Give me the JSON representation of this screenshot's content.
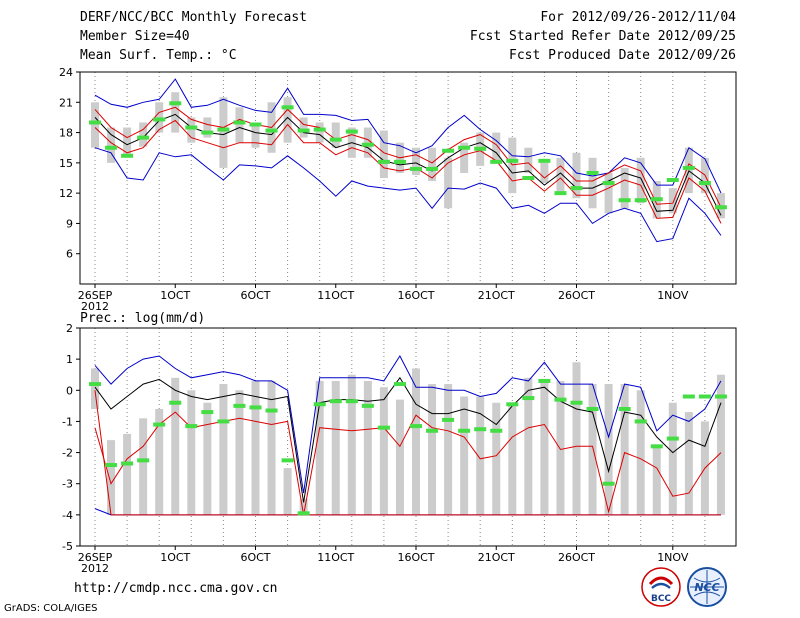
{
  "header": {
    "title": "DERF/NCC/BCC Monthly Forecast",
    "member": "Member Size=40",
    "variable": "Mean Surf. Temp.: °C",
    "period": "For 2012/09/26-2012/11/04",
    "started": "Fcst Started Refer Date 2012/09/25",
    "produced": "Fcst Produced Date 2012/09/26"
  },
  "footer": {
    "url": "http://cmdp.ncc.cma.gov.cn",
    "grads": "GrADS: COLA/IGES",
    "logo_bcc": "BCC",
    "logo_ncc": "NCC"
  },
  "colors": {
    "box": "#cccccc",
    "median": "#44dd44",
    "mean": "#000000",
    "red": "#dd0000",
    "blue": "#0000cc",
    "grid": "#888888"
  },
  "chart_data": [
    {
      "type": "box",
      "title": "Mean Surf. Temp.: °C",
      "ylim": [
        3,
        24
      ],
      "yticks": [
        6,
        9,
        12,
        15,
        18,
        21,
        24
      ],
      "xticks": [
        {
          "day": 1,
          "label": "26SEP",
          "sub": "2012"
        },
        {
          "day": 6,
          "label": "1OCT"
        },
        {
          "day": 11,
          "label": "6OCT"
        },
        {
          "day": 16,
          "label": "11OCT"
        },
        {
          "day": 21,
          "label": "16OCT"
        },
        {
          "day": 26,
          "label": "21OCT"
        },
        {
          "day": 31,
          "label": "26OCT"
        },
        {
          "day": 37,
          "label": "1NOV"
        }
      ],
      "days": 40,
      "box_low": [
        16.5,
        15.0,
        15.6,
        16.6,
        18.0,
        18.0,
        17.0,
        17.5,
        14.5,
        17.0,
        16.5,
        16.0,
        17.0,
        17.5,
        17.0,
        16.5,
        15.5,
        15.5,
        13.5,
        14.0,
        13.8,
        13.2,
        10.5,
        14.0,
        14.7,
        15.0,
        12.0,
        14.0,
        13.0,
        12.0,
        11.5,
        10.5,
        10.0,
        10.5,
        11.0,
        9.5,
        10.0,
        12.0,
        12.0,
        9.5
      ],
      "box_high": [
        21.0,
        18.5,
        18.5,
        19.0,
        21.0,
        22.0,
        19.5,
        19.5,
        21.5,
        20.5,
        19.0,
        21.0,
        21.5,
        19.5,
        19.0,
        19.0,
        18.5,
        18.5,
        18.2,
        17.0,
        16.5,
        16.5,
        15.5,
        17.0,
        18.0,
        18.0,
        17.5,
        16.5,
        15.0,
        15.5,
        16.0,
        15.5,
        14.0,
        14.5,
        15.5,
        13.2,
        12.5,
        16.5,
        15.5,
        12.0
      ],
      "median": [
        19.0,
        16.5,
        15.7,
        17.5,
        19.3,
        20.9,
        18.5,
        18.0,
        18.3,
        19.0,
        18.8,
        18.2,
        20.5,
        18.2,
        18.3,
        17.3,
        18.1,
        16.8,
        15.1,
        15.1,
        14.4,
        14.4,
        16.2,
        16.5,
        16.4,
        15.1,
        15.2,
        13.5,
        15.2,
        12.0,
        12.5,
        14.0,
        13.0,
        11.3,
        11.3,
        11.4,
        13.3,
        14.5,
        13.0,
        10.6
      ],
      "ens_mean": [
        19.5,
        17.8,
        16.8,
        17.5,
        19.2,
        19.8,
        18.5,
        18.0,
        17.8,
        18.5,
        18.0,
        17.8,
        19.5,
        18.0,
        17.8,
        16.5,
        17.0,
        16.5,
        15.2,
        14.8,
        15.0,
        14.2,
        15.5,
        16.5,
        17.0,
        16.0,
        14.0,
        14.2,
        12.8,
        14.0,
        12.5,
        12.5,
        13.2,
        14.0,
        13.5,
        10.2,
        10.3,
        14.2,
        13.0,
        9.8
      ],
      "red_low": [
        18.5,
        17.0,
        16.0,
        16.5,
        18.3,
        19.2,
        17.5,
        17.0,
        16.5,
        17.0,
        17.0,
        16.8,
        18.8,
        17.0,
        17.0,
        15.8,
        16.5,
        16.0,
        14.5,
        14.2,
        14.5,
        13.5,
        15.0,
        15.8,
        16.2,
        15.2,
        13.2,
        13.5,
        12.2,
        13.5,
        11.8,
        11.8,
        12.5,
        13.3,
        12.8,
        9.5,
        9.6,
        13.5,
        12.2,
        9.0
      ],
      "red_high": [
        20.3,
        18.5,
        17.5,
        18.3,
        20.0,
        20.5,
        19.3,
        18.8,
        18.5,
        19.3,
        18.8,
        18.5,
        20.3,
        18.8,
        18.5,
        17.3,
        17.8,
        17.3,
        16.0,
        15.5,
        15.8,
        15.0,
        16.3,
        17.3,
        17.8,
        16.8,
        14.8,
        15.0,
        13.5,
        14.7,
        13.2,
        13.2,
        14.0,
        14.8,
        14.2,
        10.9,
        11.0,
        14.9,
        13.8,
        10.6
      ],
      "blue_low": [
        16.5,
        16.0,
        13.5,
        13.3,
        16.0,
        15.6,
        15.8,
        14.5,
        13.3,
        14.8,
        14.7,
        14.5,
        15.7,
        14.5,
        13.2,
        11.7,
        13.2,
        12.7,
        12.5,
        12.3,
        12.5,
        10.5,
        12.5,
        12.4,
        13.0,
        12.5,
        10.5,
        10.8,
        10.0,
        11.0,
        11.0,
        9.0,
        10.0,
        10.5,
        10.0,
        7.2,
        7.5,
        11.5,
        10.0,
        7.8
      ],
      "blue_high": [
        21.7,
        20.8,
        20.5,
        21.0,
        21.3,
        23.3,
        20.5,
        20.7,
        21.3,
        20.7,
        20.2,
        20.0,
        22.4,
        19.8,
        19.8,
        19.7,
        19.2,
        19.3,
        17.0,
        16.7,
        16.0,
        16.7,
        18.5,
        19.7,
        18.3,
        17.2,
        15.7,
        15.6,
        16.0,
        15.7,
        14.0,
        13.7,
        14.0,
        15.5,
        15.0,
        12.8,
        12.8,
        16.5,
        15.4,
        12.0
      ]
    },
    {
      "type": "box",
      "title": "Prec.: log(mm/d)",
      "ylim": [
        -5,
        2
      ],
      "yticks": [
        -5,
        -4,
        -3,
        -2,
        -1,
        0,
        1,
        2
      ],
      "xticks": [
        {
          "day": 1,
          "label": "26SEP",
          "sub": "2012"
        },
        {
          "day": 6,
          "label": "1OCT"
        },
        {
          "day": 11,
          "label": "6OCT"
        },
        {
          "day": 16,
          "label": "11OCT"
        },
        {
          "day": 21,
          "label": "16OCT"
        },
        {
          "day": 26,
          "label": "21OCT"
        },
        {
          "day": 31,
          "label": "26OCT"
        },
        {
          "day": 37,
          "label": "1NOV"
        }
      ],
      "days": 40,
      "box_low": [
        -0.6,
        -4.0,
        -4.0,
        -4.0,
        -4.0,
        -4.0,
        -4.0,
        -4.0,
        -4.0,
        -4.0,
        -4.0,
        -4.0,
        -4.0,
        -4.0,
        -4.0,
        -4.0,
        -4.0,
        -4.0,
        -4.0,
        -4.0,
        -4.0,
        -4.0,
        -4.0,
        -4.0,
        -4.0,
        -4.0,
        -4.0,
        -4.0,
        -4.0,
        -4.0,
        -4.0,
        -4.0,
        -4.0,
        -4.0,
        -4.0,
        -4.0,
        -4.0,
        -4.0,
        -4.0,
        -4.0
      ],
      "box_high": [
        0.7,
        -1.6,
        -1.4,
        -0.9,
        -0.6,
        0.4,
        0.0,
        -0.4,
        0.2,
        0.0,
        0.3,
        0.3,
        -2.5,
        -3.5,
        0.3,
        0.3,
        0.5,
        0.3,
        0.1,
        -0.3,
        0.7,
        0.2,
        0.2,
        -0.2,
        -0.2,
        -0.4,
        -0.4,
        0.4,
        0.3,
        0.3,
        0.9,
        0.2,
        0.2,
        0.2,
        0.0,
        -1.8,
        -0.4,
        -0.7,
        -1.0,
        0.5
      ],
      "median": [
        0.2,
        -2.4,
        -2.35,
        -2.25,
        -1.1,
        -0.4,
        -1.15,
        -0.7,
        -1.0,
        -0.5,
        -0.55,
        -0.65,
        -2.25,
        -3.95,
        -0.45,
        -0.35,
        -0.35,
        -0.5,
        -1.2,
        0.2,
        -1.15,
        -1.3,
        -0.95,
        -1.3,
        -1.25,
        -1.3,
        -0.45,
        -0.25,
        0.3,
        -0.3,
        -0.4,
        -0.6,
        -3.0,
        -0.6,
        -1.0,
        -1.8,
        -1.55,
        -0.2,
        -0.2,
        -0.2
      ],
      "ens_mean": [
        0.1,
        -0.6,
        -0.2,
        0.2,
        0.35,
        0.0,
        -0.2,
        -0.3,
        -0.2,
        -0.1,
        -0.2,
        -0.3,
        -0.2,
        -3.6,
        -0.4,
        -0.3,
        -0.3,
        -0.35,
        -0.3,
        0.4,
        -0.45,
        -0.75,
        -0.75,
        -0.6,
        -0.75,
        -1.1,
        -0.5,
        0.0,
        0.1,
        -0.35,
        -0.6,
        -0.7,
        -2.6,
        -0.7,
        -0.8,
        -1.5,
        -2.0,
        -1.6,
        -1.8,
        -0.4
      ],
      "red_low": [
        -1.2,
        -3.0,
        -2.2,
        -1.8,
        -1.1,
        -0.7,
        -1.2,
        -1.1,
        -1.0,
        -0.9,
        -1.0,
        -1.1,
        -1.0,
        -4.0,
        -1.2,
        -1.25,
        -1.3,
        -1.25,
        -1.2,
        -1.8,
        -0.8,
        -1.2,
        -1.3,
        -1.5,
        -2.2,
        -2.1,
        -1.5,
        -1.2,
        -1.1,
        -1.9,
        -1.8,
        -1.8,
        -3.9,
        -2.0,
        -2.2,
        -2.5,
        -3.4,
        -3.3,
        -2.5,
        -2.0
      ],
      "red_high": [
        0.0,
        -4.0,
        -4.0,
        -4.0,
        -4.0,
        -4.0,
        -4.0,
        -4.0,
        -4.0,
        -4.0,
        -4.0,
        -4.0,
        -4.0,
        -4.0,
        -4.0,
        -4.0,
        -4.0,
        -4.0,
        -4.0,
        -4.0,
        -4.0,
        -4.0,
        -4.0,
        -4.0,
        -4.0,
        -4.0,
        -4.0,
        -4.0,
        -4.0,
        -4.0,
        -4.0,
        -4.0,
        -4.0,
        -4.0,
        -4.0,
        -4.0,
        -4.0,
        -4.0,
        -4.0,
        -4.0
      ],
      "blue_low": [
        -3.8,
        -4.0,
        -4.0,
        -4.0,
        -4.0,
        -4.0,
        -4.0,
        -4.0,
        -4.0,
        -4.0,
        -4.0,
        -4.0,
        -4.0,
        -4.0,
        -4.0,
        -4.0,
        -4.0,
        -4.0,
        -4.0,
        -4.0,
        -4.0,
        -4.0,
        -4.0,
        -4.0,
        -4.0,
        -4.0,
        -4.0,
        -4.0,
        -4.0,
        -4.0,
        -4.0,
        -4.0,
        -4.0,
        -4.0,
        -4.0,
        -4.0,
        -4.0,
        -4.0,
        -4.0,
        -4.0
      ],
      "blue_high": [
        0.8,
        0.2,
        0.7,
        1.0,
        1.1,
        0.7,
        0.4,
        0.5,
        0.6,
        0.5,
        0.3,
        0.3,
        0.0,
        -3.3,
        0.4,
        0.4,
        0.4,
        0.4,
        0.3,
        1.1,
        0.1,
        0.1,
        0.0,
        0.0,
        -0.2,
        -0.1,
        0.4,
        0.3,
        0.9,
        0.2,
        0.2,
        0.2,
        -1.5,
        0.2,
        0.1,
        -1.3,
        -0.8,
        -1.0,
        -0.6,
        0.3
      ]
    }
  ]
}
